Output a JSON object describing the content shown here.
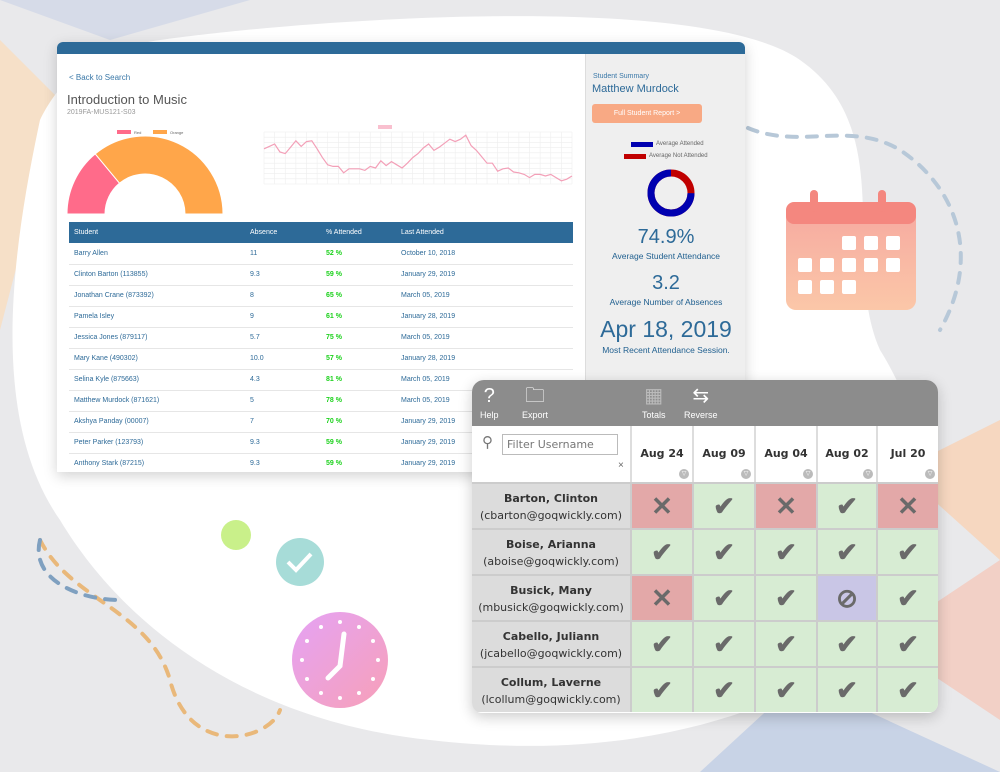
{
  "course": {
    "back_link": "< Back to Search",
    "title": "Introduction to Music",
    "code": "2019FA-MUS121-S03"
  },
  "gauge_chart": {
    "type": "pie",
    "legend": [
      "Red",
      "Orange"
    ],
    "values": [
      28,
      72
    ]
  },
  "line_chart": {
    "type": "line",
    "values": [
      74,
      77,
      80,
      70,
      68,
      76,
      84,
      77,
      83,
      84,
      74,
      63,
      54,
      52,
      52,
      44,
      49,
      49,
      49,
      47,
      52,
      50,
      59,
      53,
      58,
      54,
      50,
      56,
      63,
      68,
      75,
      80,
      72,
      76,
      81,
      86,
      83,
      86,
      91,
      78,
      72,
      64,
      56,
      56,
      46,
      49,
      50,
      45,
      44,
      42,
      38,
      42,
      42,
      40,
      42,
      38,
      34,
      36,
      40
    ],
    "color": "#f3a0b8"
  },
  "table": {
    "headers": [
      "Student",
      "Absence",
      "% Attended",
      "Last Attended"
    ],
    "rows": [
      [
        "Barry Allen",
        "11",
        "52 %",
        "October 10, 2018"
      ],
      [
        "Clinton Barton (113855)",
        "9.3",
        "59 %",
        "January 29, 2019"
      ],
      [
        "Jonathan Crane (873392)",
        "8",
        "65 %",
        "March 05, 2019"
      ],
      [
        "Pamela Isley",
        "9",
        "61 %",
        "January 28, 2019"
      ],
      [
        "Jessica Jones (879117)",
        "5.7",
        "75 %",
        "March 05, 2019"
      ],
      [
        "Mary Kane (490302)",
        "10.0",
        "57 %",
        "January 28, 2019"
      ],
      [
        "Selina Kyle (875663)",
        "4.3",
        "81 %",
        "March 05, 2019"
      ],
      [
        "Matthew Murdock (871621)",
        "5",
        "78 %",
        "March 05, 2019"
      ],
      [
        "Akshya Panday (00007)",
        "7",
        "70 %",
        "January 29, 2019"
      ],
      [
        "Peter Parker (123793)",
        "9.3",
        "59 %",
        "January 29, 2019"
      ],
      [
        "Anthony Stark (87215)",
        "9.3",
        "59 %",
        "January 29, 2019"
      ]
    ]
  },
  "summary": {
    "label": "Student Summary",
    "name": "Matthew Murdock",
    "report_button": "Full Student Report >",
    "legend_attended": "Average Attended",
    "legend_not": "Average Not Attended",
    "attended_fraction": 0.749,
    "avg_attendance": "74.9%",
    "avg_attendance_label": "Average Student Attendance",
    "avg_absences": "3.2",
    "avg_absences_label": "Average Number of Absences",
    "recent": "Apr 18, 2019",
    "recent_label": "Most Recent Attendance Session."
  },
  "grid": {
    "toolbar": [
      "Help",
      "Export",
      "Totals",
      "Reverse"
    ],
    "filter_placeholder": "Filter Username",
    "clear": "×",
    "dates": [
      "Aug 24",
      "Aug 09",
      "Aug 04",
      "Aug 02",
      "Jul 20"
    ],
    "students": [
      {
        "name": "Barton, Clinton",
        "email": "(cbarton@goqwickly.com)",
        "status": [
          "absent",
          "present",
          "absent",
          "present",
          "absent"
        ]
      },
      {
        "name": "Boise, Arianna",
        "email": "(aboise@goqwickly.com)",
        "status": [
          "present",
          "present",
          "present",
          "present",
          "present"
        ]
      },
      {
        "name": "Busick, Many",
        "email": "(mbusick@goqwickly.com)",
        "status": [
          "absent",
          "present",
          "present",
          "excused",
          "present"
        ]
      },
      {
        "name": "Cabello, Juliann",
        "email": "(jcabello@goqwickly.com)",
        "status": [
          "present",
          "present",
          "present",
          "present",
          "present"
        ]
      },
      {
        "name": "Collum, Laverne",
        "email": "(lcollum@goqwickly.com)",
        "status": [
          "present",
          "present",
          "present",
          "present",
          "present"
        ]
      }
    ]
  },
  "colors": {
    "blue": "#2d6a98",
    "red": "#ff6b8a",
    "orange": "#ffa64a"
  }
}
